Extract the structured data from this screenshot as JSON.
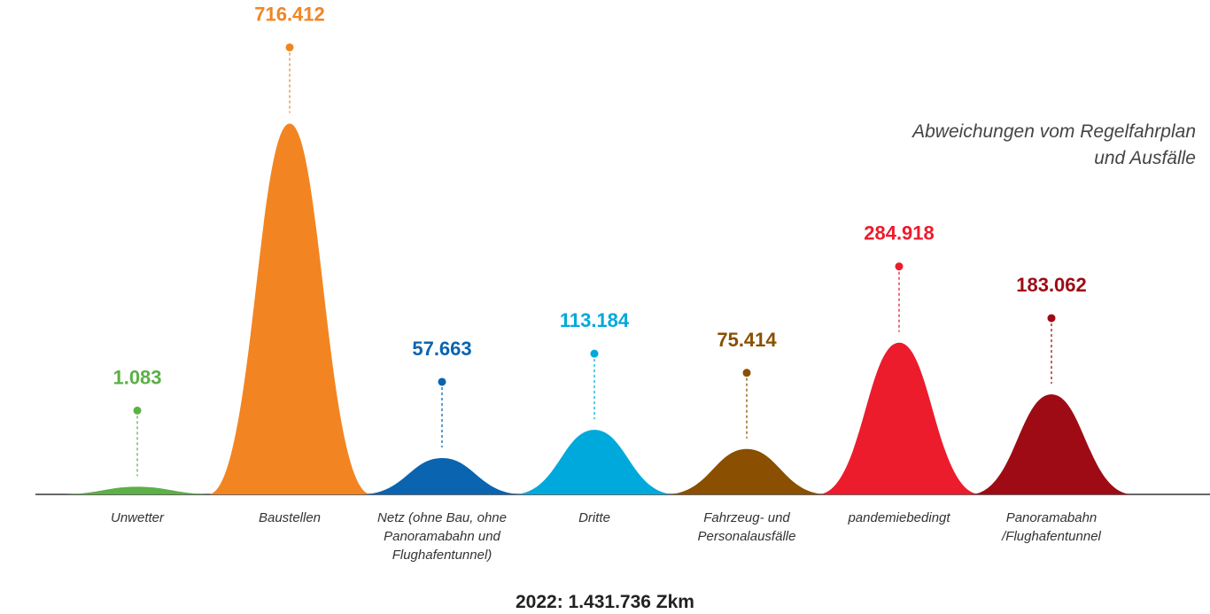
{
  "chart_data": {
    "type": "bar",
    "title": "Abweichungen vom Regelfahrplan und Ausfälle",
    "categories": [
      "Unwetter",
      "Baustellen",
      "Netz (ohne Bau, ohne Panoramabahn und Flughafentunnel)",
      "Dritte",
      "Fahrzeug- und Personalausfälle",
      "pandemiebedingt",
      "Panoramabahn /Flughafentunnel"
    ],
    "values": [
      1083,
      716412,
      57663,
      113184,
      75414,
      284918,
      183062
    ],
    "value_labels": [
      "1.083",
      "716.412",
      "57.663",
      "113.184",
      "75.414",
      "284.918",
      "183.062"
    ],
    "colors": [
      "#5bb046",
      "#f28522",
      "#0a64b0",
      "#00a9dc",
      "#8a4f00",
      "#ec1c2d",
      "#9e0b15"
    ],
    "footer": "2022: 1.431.736 Zkm"
  }
}
